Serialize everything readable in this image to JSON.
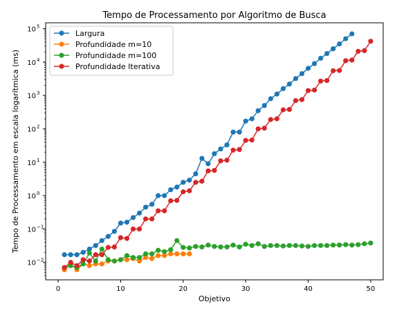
{
  "chart_data": {
    "type": "line",
    "title": "Tempo de Processamento por Algoritmo de Busca",
    "xlabel": "Objetivo",
    "ylabel": "Tempo de Processamento em escala logarítmica (ms)",
    "xlim": [
      -2,
      52
    ],
    "ylim": [
      0.003,
      150000
    ],
    "yscale": "log",
    "x_ticks": [
      0,
      10,
      20,
      30,
      40,
      50
    ],
    "x_tick_labels": [
      "0",
      "10",
      "20",
      "30",
      "40",
      "50"
    ],
    "y_ticks": [
      0.01,
      0.1,
      1,
      10,
      100,
      1000,
      10000,
      100000
    ],
    "y_tick_labels": [
      {
        "base": "10",
        "exp": "−2"
      },
      {
        "base": "10",
        "exp": "−1"
      },
      {
        "base": "10",
        "exp": "0"
      },
      {
        "base": "10",
        "exp": "1"
      },
      {
        "base": "10",
        "exp": "2"
      },
      {
        "base": "10",
        "exp": "3"
      },
      {
        "base": "10",
        "exp": "4"
      },
      {
        "base": "10",
        "exp": "5"
      }
    ],
    "grid": false,
    "legend_position": "top-left",
    "series": [
      {
        "name": "Largura",
        "color": "#1f77b4",
        "x": [
          1,
          2,
          3,
          4,
          5,
          6,
          7,
          8,
          9,
          10,
          11,
          12,
          13,
          14,
          15,
          16,
          17,
          18,
          19,
          20,
          21,
          22,
          23,
          24,
          25,
          26,
          27,
          28,
          29,
          30,
          31,
          32,
          33,
          34,
          35,
          36,
          37,
          38,
          39,
          40,
          41,
          42,
          43,
          44,
          45,
          46,
          47
        ],
        "y": [
          0.017,
          0.017,
          0.017,
          0.02,
          0.025,
          0.032,
          0.045,
          0.06,
          0.085,
          0.15,
          0.16,
          0.22,
          0.3,
          0.45,
          0.55,
          1.0,
          1.0,
          1.5,
          1.8,
          2.5,
          2.9,
          4.5,
          13,
          9,
          18,
          25,
          33,
          80,
          80,
          170,
          200,
          350,
          500,
          800,
          1100,
          1600,
          2200,
          3200,
          4500,
          6500,
          9000,
          13000,
          18000,
          25000,
          35000,
          50000,
          70000
        ]
      },
      {
        "name": "Profundidade m=10",
        "color": "#ff7f0e",
        "x": [
          1,
          2,
          3,
          4,
          5,
          6,
          7,
          8,
          9,
          10,
          11,
          12,
          13,
          14,
          15,
          16,
          17,
          18,
          19,
          20,
          21
        ],
        "y": [
          0.006,
          0.009,
          0.006,
          0.009,
          0.008,
          0.009,
          0.009,
          0.011,
          0.011,
          0.012,
          0.012,
          0.013,
          0.011,
          0.014,
          0.013,
          0.016,
          0.016,
          0.018,
          0.018,
          0.018,
          0.018
        ]
      },
      {
        "name": "Profundidade m=100",
        "color": "#2ca02c",
        "x": [
          1,
          2,
          3,
          4,
          5,
          6,
          7,
          8,
          9,
          10,
          11,
          12,
          13,
          14,
          15,
          16,
          17,
          18,
          19,
          20,
          21,
          22,
          23,
          24,
          25,
          26,
          27,
          28,
          29,
          30,
          31,
          32,
          33,
          34,
          35,
          36,
          37,
          38,
          39,
          40,
          41,
          42,
          43,
          44,
          45,
          46,
          47,
          48,
          49,
          50
        ],
        "y": [
          0.007,
          0.008,
          0.007,
          0.009,
          0.019,
          0.011,
          0.025,
          0.012,
          0.011,
          0.012,
          0.016,
          0.014,
          0.014,
          0.018,
          0.018,
          0.023,
          0.021,
          0.024,
          0.045,
          0.028,
          0.027,
          0.03,
          0.029,
          0.033,
          0.03,
          0.029,
          0.029,
          0.033,
          0.029,
          0.035,
          0.032,
          0.036,
          0.03,
          0.032,
          0.032,
          0.031,
          0.032,
          0.032,
          0.031,
          0.03,
          0.032,
          0.032,
          0.032,
          0.033,
          0.033,
          0.034,
          0.033,
          0.034,
          0.036,
          0.038
        ]
      },
      {
        "name": "Profundidade Iterativa",
        "color": "#d62728",
        "x": [
          1,
          2,
          3,
          4,
          5,
          6,
          7,
          8,
          9,
          10,
          11,
          12,
          13,
          14,
          15,
          16,
          17,
          18,
          19,
          20,
          21,
          22,
          23,
          24,
          25,
          26,
          27,
          28,
          29,
          30,
          31,
          32,
          33,
          34,
          35,
          36,
          37,
          38,
          39,
          40,
          41,
          42,
          43,
          44,
          45,
          46,
          47,
          48,
          49,
          50
        ],
        "y": [
          0.007,
          0.01,
          0.008,
          0.012,
          0.011,
          0.017,
          0.017,
          0.028,
          0.029,
          0.055,
          0.052,
          0.1,
          0.1,
          0.2,
          0.2,
          0.35,
          0.35,
          0.7,
          0.72,
          1.3,
          1.4,
          2.5,
          2.7,
          5.5,
          5.7,
          11,
          11.5,
          23,
          24,
          45,
          46,
          100,
          105,
          190,
          200,
          370,
          380,
          700,
          750,
          1400,
          1450,
          2700,
          2800,
          5500,
          5600,
          11000,
          11500,
          21000,
          22000,
          42000
        ]
      }
    ]
  }
}
